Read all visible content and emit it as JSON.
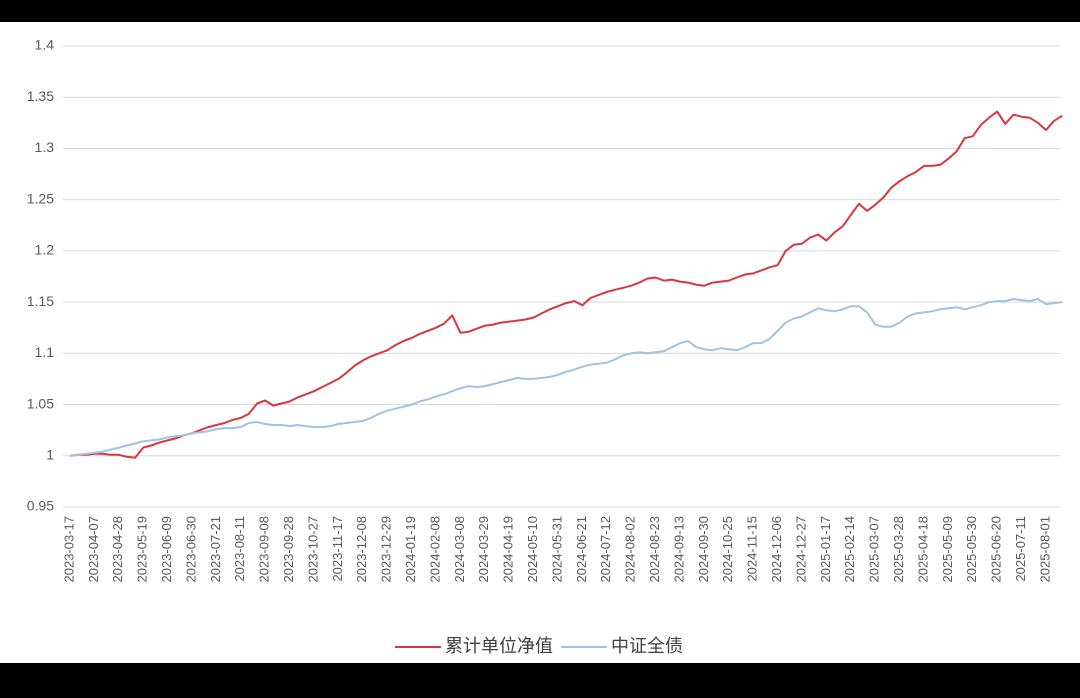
{
  "chart_data": {
    "type": "line",
    "categories": [
      "2023-03-17",
      null,
      null,
      "2023-04-07",
      null,
      null,
      "2023-04-28",
      null,
      null,
      "2023-05-19",
      null,
      null,
      "2023-06-09",
      null,
      null,
      "2023-06-30",
      null,
      null,
      "2023-07-21",
      null,
      null,
      "2023-08-11",
      null,
      null,
      "2023-09-08",
      null,
      null,
      "2023-09-28",
      null,
      null,
      "2023-10-27",
      null,
      null,
      "2023-11-17",
      null,
      null,
      "2023-12-08",
      null,
      null,
      "2023-12-29",
      null,
      null,
      "2024-01-19",
      null,
      null,
      "2024-02-08",
      null,
      null,
      "2024-03-08",
      null,
      null,
      "2024-03-29",
      null,
      null,
      "2024-04-19",
      null,
      null,
      "2024-05-10",
      null,
      null,
      "2024-05-31",
      null,
      null,
      "2024-06-21",
      null,
      null,
      "2024-07-12",
      null,
      null,
      "2024-08-02",
      null,
      null,
      "2024-08-23",
      null,
      null,
      "2024-09-13",
      null,
      null,
      "2024-09-30",
      null,
      null,
      "2024-10-25",
      null,
      null,
      "2024-11-15",
      null,
      null,
      "2024-12-06",
      null,
      null,
      "2024-12-27",
      null,
      null,
      "2025-01-17",
      null,
      null,
      "2025-02-14",
      null,
      null,
      "2025-03-07",
      null,
      null,
      "2025-03-28",
      null,
      null,
      "2025-04-18",
      null,
      null,
      "2025-05-09",
      null,
      null,
      "2025-05-30",
      null,
      null,
      "2025-06-20",
      null,
      null,
      "2025-07-11",
      null,
      null,
      "2025-08-01",
      null,
      null
    ],
    "series": [
      {
        "name": "累计单位净值",
        "color": "#d9363e",
        "values": [
          1.0,
          1.001,
          1.001,
          1.002,
          1.002,
          1.001,
          1.001,
          0.999,
          0.998,
          1.008,
          1.01,
          1.013,
          1.015,
          1.017,
          1.02,
          1.022,
          1.025,
          1.028,
          1.03,
          1.032,
          1.035,
          1.037,
          1.041,
          1.051,
          1.054,
          1.049,
          1.051,
          1.053,
          1.057,
          1.06,
          1.063,
          1.067,
          1.071,
          1.075,
          1.081,
          1.088,
          1.093,
          1.097,
          1.1,
          1.103,
          1.108,
          1.112,
          1.115,
          1.119,
          1.122,
          1.125,
          1.129,
          1.137,
          1.12,
          1.121,
          1.124,
          1.127,
          1.128,
          1.13,
          1.131,
          1.132,
          1.133,
          1.135,
          1.139,
          1.143,
          1.146,
          1.149,
          1.151,
          1.147,
          1.154,
          1.157,
          1.16,
          1.162,
          1.164,
          1.166,
          1.169,
          1.173,
          1.174,
          1.171,
          1.172,
          1.17,
          1.169,
          1.167,
          1.166,
          1.169,
          1.17,
          1.171,
          1.174,
          1.177,
          1.178,
          1.181,
          1.184,
          1.186,
          1.2,
          1.206,
          1.207,
          1.213,
          1.216,
          1.21,
          1.218,
          1.224,
          1.235,
          1.246,
          1.239,
          1.245,
          1.252,
          1.262,
          1.268,
          1.273,
          1.277,
          1.283,
          1.283,
          1.284,
          1.29,
          1.297,
          1.31,
          1.312,
          1.323,
          1.33,
          1.336,
          1.324,
          1.333,
          1.331,
          1.33,
          1.325,
          1.318,
          1.327,
          1.332
        ]
      },
      {
        "name": "中证全债",
        "color": "#9dc3e6",
        "values": [
          1.0,
          1.001,
          1.002,
          1.003,
          1.004,
          1.006,
          1.008,
          1.01,
          1.012,
          1.014,
          1.015,
          1.016,
          1.018,
          1.019,
          1.02,
          1.022,
          1.023,
          1.024,
          1.026,
          1.027,
          1.027,
          1.028,
          1.032,
          1.033,
          1.031,
          1.03,
          1.03,
          1.029,
          1.03,
          1.029,
          1.028,
          1.028,
          1.029,
          1.031,
          1.032,
          1.033,
          1.034,
          1.037,
          1.041,
          1.044,
          1.046,
          1.048,
          1.05,
          1.053,
          1.055,
          1.058,
          1.06,
          1.063,
          1.066,
          1.068,
          1.067,
          1.068,
          1.07,
          1.072,
          1.074,
          1.076,
          1.075,
          1.075,
          1.076,
          1.077,
          1.079,
          1.082,
          1.084,
          1.087,
          1.089,
          1.09,
          1.091,
          1.094,
          1.098,
          1.1,
          1.101,
          1.1,
          1.101,
          1.102,
          1.106,
          1.11,
          1.112,
          1.106,
          1.104,
          1.103,
          1.105,
          1.104,
          1.103,
          1.106,
          1.11,
          1.11,
          1.114,
          1.122,
          1.13,
          1.134,
          1.136,
          1.14,
          1.144,
          1.142,
          1.141,
          1.143,
          1.146,
          1.146,
          1.14,
          1.128,
          1.126,
          1.126,
          1.13,
          1.136,
          1.139,
          1.14,
          1.141,
          1.143,
          1.144,
          1.145,
          1.143,
          1.145,
          1.147,
          1.15,
          1.151,
          1.151,
          1.153,
          1.152,
          1.151,
          1.153,
          1.148,
          1.149,
          1.15
        ]
      }
    ],
    "ylim": [
      0.95,
      1.4
    ],
    "yticks": [
      0.95,
      1,
      1.05,
      1.1,
      1.15,
      1.2,
      1.25,
      1.3,
      1.35,
      1.4
    ],
    "grid": true,
    "legend": "bottom"
  }
}
